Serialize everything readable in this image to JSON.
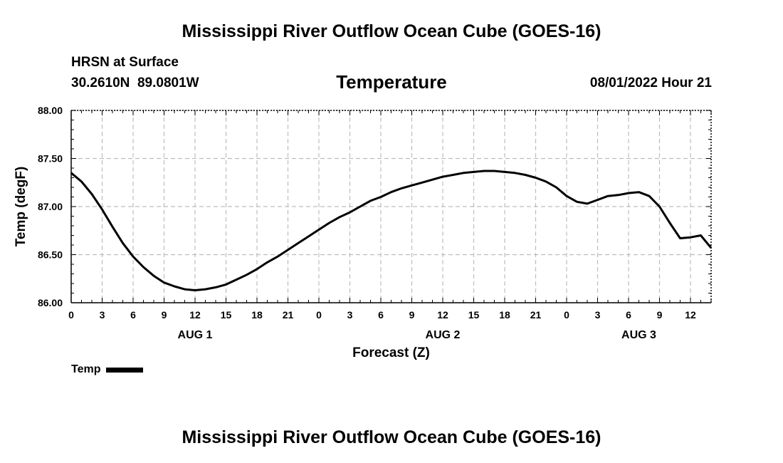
{
  "header": {
    "title": "Mississippi River Outflow Ocean Cube (GOES-16)",
    "location": "HRSN at Surface",
    "coords": "30.2610N  89.0801W",
    "chart_title": "Temperature",
    "valid_time": "08/01/2022 Hour 21"
  },
  "footer": {
    "title": "Mississippi River Outflow Ocean Cube (GOES-16)"
  },
  "legend": {
    "label": "Temp",
    "color": "#000000"
  },
  "chart_data": {
    "type": "line",
    "title": "Temperature",
    "xlabel": "Forecast (Z)",
    "ylabel": "Temp (degF)",
    "xlim": [
      0,
      62
    ],
    "ylim": [
      86.0,
      88.0
    ],
    "grid": true,
    "yticks": [
      "86.00",
      "86.50",
      "87.00",
      "87.50",
      "88.00"
    ],
    "xticks": [
      "0",
      "3",
      "6",
      "9",
      "12",
      "15",
      "18",
      "21",
      "0",
      "3",
      "6",
      "9",
      "12",
      "15",
      "18",
      "21",
      "0",
      "3",
      "6",
      "9",
      "12"
    ],
    "day_labels": [
      {
        "label": "AUG 1",
        "x": 12
      },
      {
        "label": "AUG 2",
        "x": 36
      },
      {
        "label": "AUG 3",
        "x": 55
      }
    ],
    "series": [
      {
        "name": "Temp",
        "x": [
          0,
          1,
          2,
          3,
          4,
          5,
          6,
          7,
          8,
          9,
          10,
          11,
          12,
          13,
          14,
          15,
          16,
          17,
          18,
          19,
          20,
          21,
          22,
          23,
          24,
          25,
          26,
          27,
          28,
          29,
          30,
          31,
          32,
          33,
          34,
          35,
          36,
          37,
          38,
          39,
          40,
          41,
          42,
          43,
          44,
          45,
          46,
          47,
          48,
          49,
          50,
          51,
          52,
          53,
          54,
          55,
          56,
          57,
          58,
          59,
          60,
          61,
          62
        ],
        "values": [
          87.35,
          87.26,
          87.13,
          86.97,
          86.79,
          86.62,
          86.48,
          86.37,
          86.28,
          86.21,
          86.17,
          86.14,
          86.13,
          86.14,
          86.16,
          86.19,
          86.24,
          86.29,
          86.35,
          86.42,
          86.48,
          86.55,
          86.62,
          86.69,
          86.76,
          86.83,
          86.89,
          86.94,
          87.0,
          87.06,
          87.1,
          87.15,
          87.19,
          87.22,
          87.25,
          87.28,
          87.31,
          87.33,
          87.35,
          87.36,
          87.37,
          87.37,
          87.36,
          87.35,
          87.33,
          87.3,
          87.26,
          87.2,
          87.11,
          87.05,
          87.03,
          87.07,
          87.11,
          87.12,
          87.14,
          87.15,
          87.11,
          87.0,
          86.83,
          86.67,
          86.68,
          86.7,
          86.57
        ]
      }
    ]
  }
}
